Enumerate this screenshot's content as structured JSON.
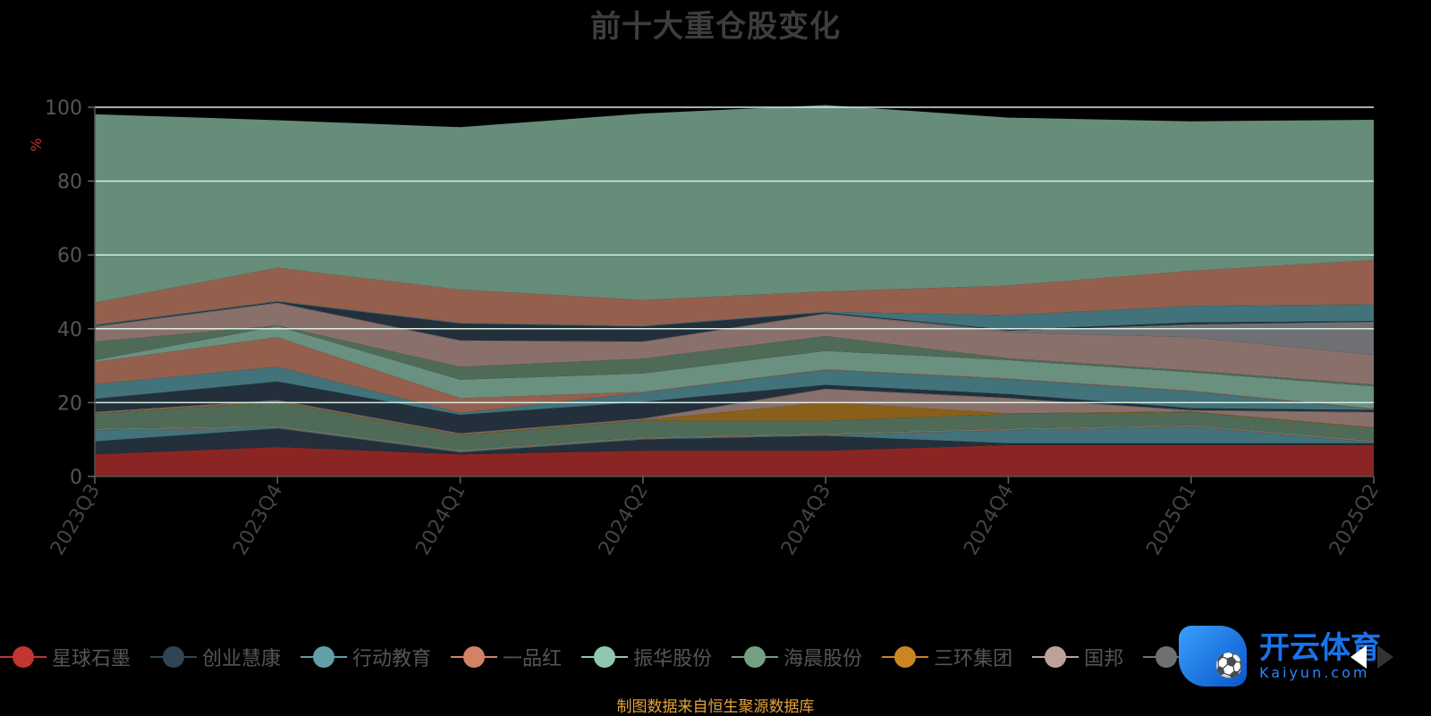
{
  "page": {
    "background": "#000000"
  },
  "legend": {
    "items": [
      {
        "label": "星球石墨",
        "color": "#c23531"
      },
      {
        "label": "创业慧康",
        "color": "#2f4554"
      },
      {
        "label": "行动教育",
        "color": "#61a0a8"
      },
      {
        "label": "一品红",
        "color": "#d48265"
      },
      {
        "label": "振华股份",
        "color": "#91c7ae"
      },
      {
        "label": "海晨股份",
        "color": "#749f83"
      },
      {
        "label": "三环集团",
        "color": "#ca8622"
      },
      {
        "label": "国邦",
        "color": "#bda29a"
      },
      {
        "label": "",
        "color": "#6e7074"
      }
    ],
    "nav_icons": [
      "chevron-left-icon",
      "chevron-right-icon"
    ]
  },
  "watermark": {
    "name": "开云体育",
    "site": "Kaiyun.com"
  },
  "footer": {
    "source": "制图数据来自恒生聚源数据库"
  },
  "chart_data": {
    "type": "area",
    "stacked": true,
    "title": "前十大重仓股变化",
    "ylabel": "%",
    "ylim": [
      0,
      100
    ],
    "yticks": [
      0,
      20,
      40,
      60,
      80,
      100
    ],
    "grid": true,
    "legend_position": "bottom",
    "categories": [
      "2023Q3",
      "2023Q4",
      "2024Q1",
      "2024Q2",
      "2024Q3",
      "2024Q4",
      "2025Q1",
      "2025Q2"
    ],
    "series": [
      {
        "name": "星球石墨",
        "color": "#8b2523",
        "values": [
          6,
          8,
          6,
          7,
          7,
          8.5,
          8.5,
          8.5
        ]
      },
      {
        "name": "创业慧康",
        "color": "#23303b",
        "values": [
          3.5,
          5,
          0.5,
          3,
          4,
          0.5,
          0.5,
          0.5
        ]
      },
      {
        "name": "行动教育",
        "color": "#42727a",
        "values": [
          3,
          0.2,
          0.2,
          0.2,
          0.2,
          3.5,
          4.5,
          0.2
        ]
      },
      {
        "name": "一品红",
        "color": "#94604d",
        "values": [
          0.2,
          0.2,
          0.2,
          0.2,
          0.2,
          0.2,
          0.2,
          0.2
        ]
      },
      {
        "name": "振华股份",
        "color": "#6a9080",
        "values": [
          0.2,
          0.2,
          0.2,
          0.2,
          0.2,
          0.2,
          0.2,
          0.2
        ]
      },
      {
        "name": "海晨股份",
        "color": "#4f6b58",
        "values": [
          4,
          6.5,
          4,
          4.5,
          3.5,
          4,
          3.5,
          3.5
        ]
      },
      {
        "name": "三环集团",
        "color": "#8a5f19",
        "values": [
          0.2,
          0.2,
          0.2,
          0.2,
          5,
          0.2,
          0.2,
          0.2
        ]
      },
      {
        "name": "国邦",
        "color": "#8a706b",
        "values": [
          0.2,
          0.2,
          0.2,
          0.2,
          3.5,
          4,
          0.2,
          4
        ]
      },
      {
        "name": "",
        "color": "#6e7074",
        "values": [
          0.2,
          0.2,
          0.2,
          0.2,
          0.2,
          0.2,
          0.2,
          0.2
        ]
      },
      {
        "name": "",
        "color": "#23303b",
        "values": [
          3.5,
          5,
          5,
          4.5,
          1,
          1,
          0.5,
          0.5
        ]
      },
      {
        "name": "",
        "color": "#42727a",
        "values": [
          4,
          4,
          0.5,
          2.5,
          4,
          4,
          4.5,
          0.2
        ]
      },
      {
        "name": "",
        "color": "#94604d",
        "values": [
          6,
          8,
          4,
          0.2,
          0.2,
          0.2,
          0.2,
          0.2
        ]
      },
      {
        "name": "",
        "color": "#6a9080",
        "values": [
          0.5,
          3,
          5,
          5,
          5,
          5,
          5,
          6
        ]
      },
      {
        "name": "",
        "color": "#4f6b58",
        "values": [
          5,
          0.2,
          3.5,
          4,
          4,
          0.5,
          0.5,
          0.5
        ]
      },
      {
        "name": "",
        "color": "#8a706b",
        "values": [
          4,
          6,
          7,
          4.5,
          6,
          7,
          9,
          8
        ]
      },
      {
        "name": "",
        "color": "#6e7074",
        "values": [
          0.2,
          0.2,
          0.2,
          0.2,
          0.2,
          0.5,
          3.5,
          9
        ]
      },
      {
        "name": "",
        "color": "#23303b",
        "values": [
          0.2,
          0.2,
          4.5,
          4,
          0.2,
          0.2,
          0.5,
          0.2
        ]
      },
      {
        "name": "",
        "color": "#42727a",
        "values": [
          0.2,
          0.2,
          0.2,
          0.2,
          0.2,
          4,
          4.5,
          4.5
        ]
      },
      {
        "name": "",
        "color": "#94604d",
        "values": [
          6,
          9,
          9,
          7,
          5.5,
          8,
          9.5,
          12
        ]
      },
      {
        "name": "",
        "color": "#668c7a",
        "values": [
          51,
          40,
          44,
          50.5,
          50.5,
          45.5,
          40.5,
          38
        ]
      }
    ]
  }
}
